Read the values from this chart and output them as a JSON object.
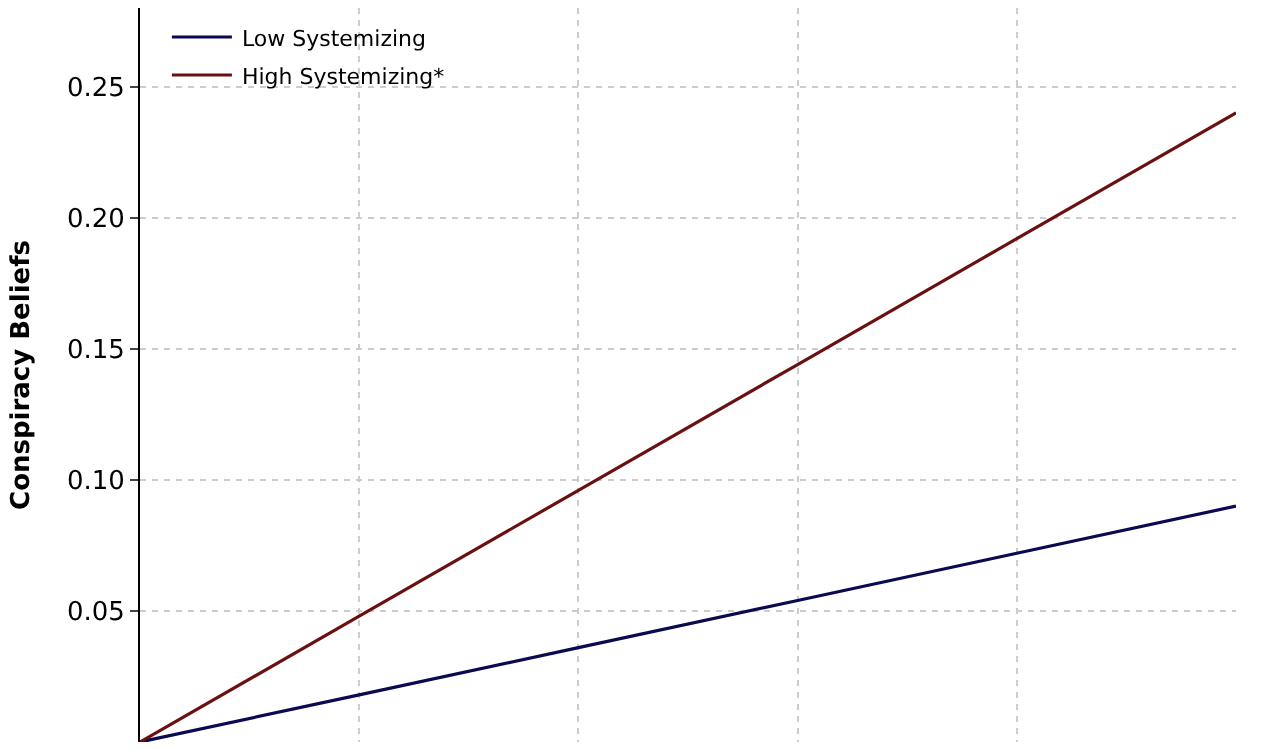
{
  "chart_data": {
    "type": "line",
    "ylabel": "Conspiracy Beliefs",
    "categories": [
      null,
      null,
      null,
      null,
      null,
      null
    ],
    "ylim": [
      0,
      0.28
    ],
    "yticks": [
      0.05,
      {
        "value": 0.1,
        "label": "0.10"
      },
      0.15,
      {
        "value": 0.2,
        "label": "0.20"
      },
      0.25
    ],
    "series": [
      {
        "name": "Low Systemizing",
        "color": "#0a0a50",
        "values": [
          0,
          0.018,
          0.036,
          0.054,
          0.072,
          0.09
        ]
      },
      {
        "name": "High Systemizing*",
        "color": "#6b1010",
        "values": [
          0,
          0.048,
          0.096,
          0.144,
          0.192,
          0.24
        ]
      }
    ],
    "grid": true,
    "legend": "top left",
    "marker": "none",
    "line_style": "solid"
  }
}
